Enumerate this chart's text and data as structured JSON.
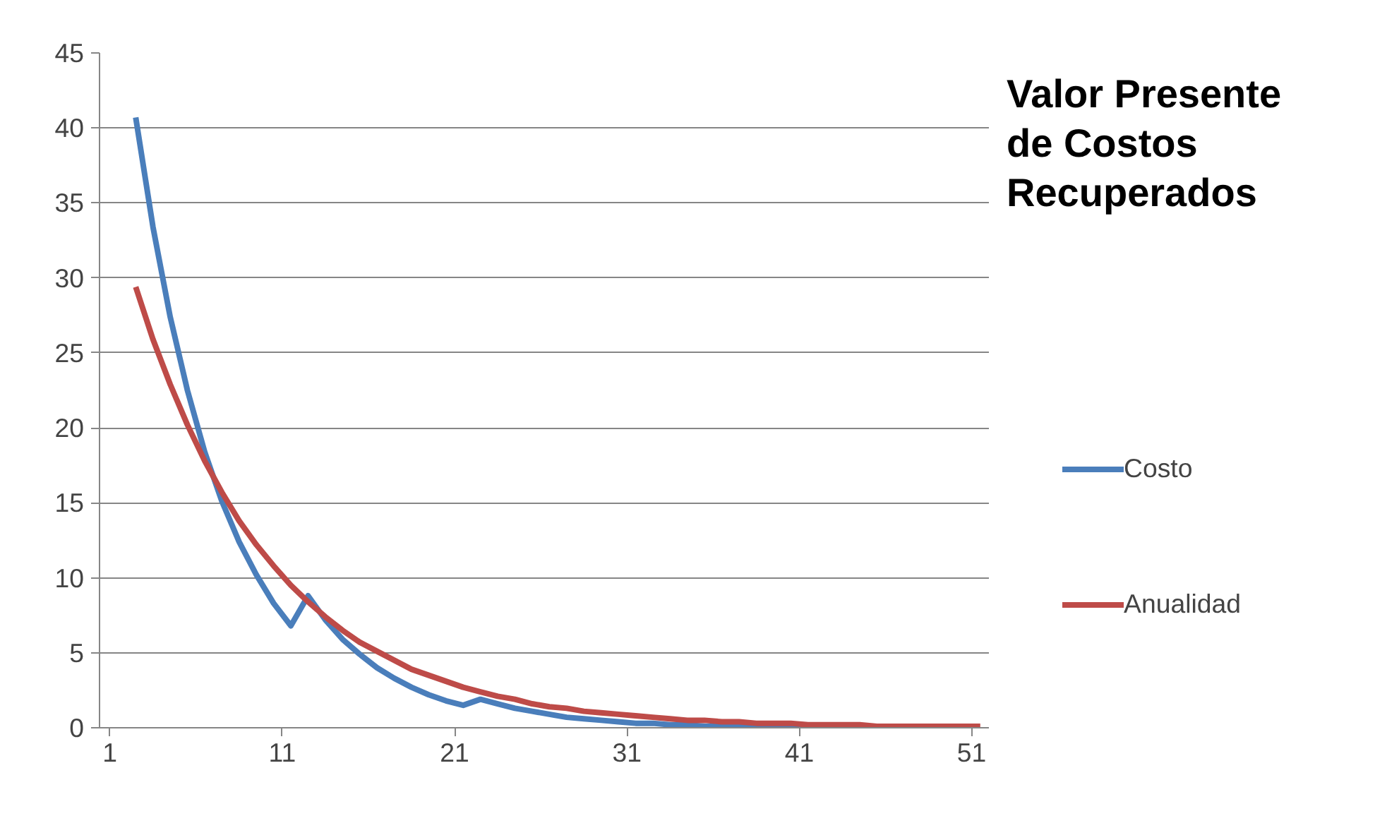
{
  "chart_data": {
    "type": "line",
    "title": "Valor Presente de Costos Recuperados",
    "x": [
      2.5,
      3.5,
      4.5,
      5.5,
      6.5,
      7.5,
      8.5,
      9.5,
      10.5,
      11.5,
      12.5,
      13.5,
      14.5,
      15.5,
      16.5,
      17.5,
      18.5,
      19.5,
      20.5,
      21.5,
      22.5,
      23.5,
      24.5,
      25.5,
      26.5,
      27.5,
      28.5,
      29.5,
      30.5,
      31.5,
      32.5,
      33.5,
      34.5,
      35.5,
      36.5,
      37.5,
      38.5,
      39.5,
      40.5,
      41.5,
      42.5,
      43.5,
      44.5,
      45.5,
      46.5,
      47.5,
      48.5,
      49.5,
      50.5,
      51.5
    ],
    "series": [
      {
        "name": "Costo",
        "color": "#4a7ebb",
        "values": [
          40.7,
          33.4,
          27.4,
          22.5,
          18.4,
          15.1,
          12.4,
          10.2,
          8.3,
          6.8,
          8.8,
          7.2,
          5.9,
          4.9,
          4.0,
          3.3,
          2.7,
          2.2,
          1.8,
          1.5,
          1.9,
          1.6,
          1.3,
          1.1,
          0.9,
          0.7,
          0.6,
          0.5,
          0.4,
          0.3,
          0.3,
          0.2,
          0.2,
          0.1,
          0.1,
          0.1,
          0.1,
          0.1,
          0.1,
          0.1,
          0.0,
          null,
          null,
          null,
          null,
          null,
          null,
          null,
          null,
          null
        ]
      },
      {
        "name": "Anualidad",
        "color": "#be4b48",
        "values": [
          29.4,
          25.9,
          22.9,
          20.2,
          17.8,
          15.7,
          13.8,
          12.2,
          10.8,
          9.5,
          8.4,
          7.4,
          6.5,
          5.7,
          5.1,
          4.5,
          3.9,
          3.5,
          3.1,
          2.7,
          2.4,
          2.1,
          1.9,
          1.6,
          1.4,
          1.3,
          1.1,
          1.0,
          0.9,
          0.8,
          0.7,
          0.6,
          0.5,
          0.5,
          0.4,
          0.4,
          0.3,
          0.3,
          0.3,
          0.2,
          0.2,
          0.2,
          0.2,
          0.1,
          0.1,
          0.1,
          0.1,
          0.1,
          0.1,
          0.1
        ]
      }
    ],
    "xlim": [
      0.4,
      52
    ],
    "xticks": [
      1,
      11,
      21,
      31,
      41,
      51
    ],
    "ylim": [
      0,
      45
    ],
    "yticks": [
      0,
      5,
      10,
      15,
      20,
      25,
      30,
      35,
      40,
      45
    ],
    "grid": "y",
    "legend": "right",
    "marker": "none",
    "line_style": "solid"
  }
}
